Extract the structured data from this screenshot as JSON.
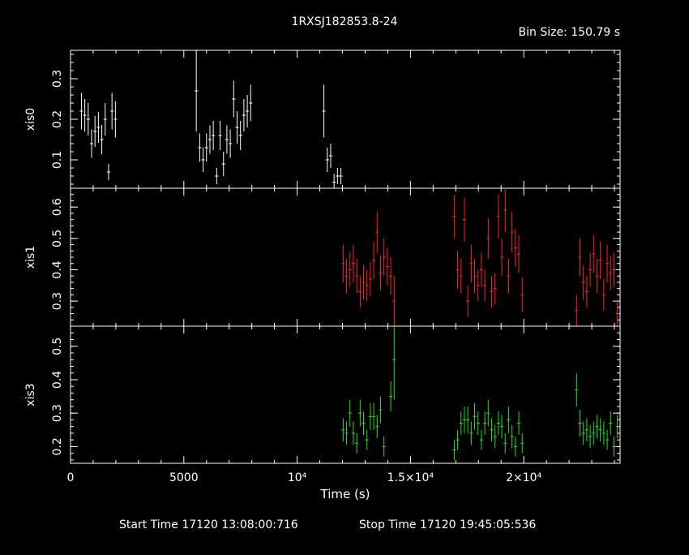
{
  "title": "1RXSJ182853.8-24",
  "bin_size_text": "Bin Size: 150.79 s",
  "footer": {
    "start_time": "Start Time 17120 13:08:00:716",
    "stop_time": "Stop Time 17120 19:45:05:536"
  },
  "chart_data": [
    {
      "type": "scatter",
      "ylabel": "xis0",
      "color": "#ffffff",
      "xlim": [
        0,
        24250
      ],
      "ylim": [
        0.03,
        0.37
      ],
      "yticks": [
        0.1,
        0.2,
        0.3
      ],
      "ytick_labels": [
        "0.1",
        "0.2",
        "0.3"
      ],
      "xticks": [
        0,
        5000,
        10000,
        15000,
        20000
      ],
      "xtick_labels": [
        "",
        "",
        "",
        "",
        ""
      ],
      "xerr": 75,
      "points": [
        {
          "x": 480,
          "y": 0.22,
          "e": 0.045
        },
        {
          "x": 630,
          "y": 0.21,
          "e": 0.04
        },
        {
          "x": 780,
          "y": 0.2,
          "e": 0.04
        },
        {
          "x": 930,
          "y": 0.14,
          "e": 0.035
        },
        {
          "x": 1080,
          "y": 0.17,
          "e": 0.038
        },
        {
          "x": 1230,
          "y": 0.18,
          "e": 0.038
        },
        {
          "x": 1380,
          "y": 0.15,
          "e": 0.036
        },
        {
          "x": 1530,
          "y": 0.2,
          "e": 0.04
        },
        {
          "x": 1680,
          "y": 0.07,
          "e": 0.02
        },
        {
          "x": 1830,
          "y": 0.22,
          "e": 0.045
        },
        {
          "x": 1980,
          "y": 0.2,
          "e": 0.045
        },
        {
          "x": 5550,
          "y": 0.27,
          "e": 0.1
        },
        {
          "x": 5700,
          "y": 0.13,
          "e": 0.035
        },
        {
          "x": 5850,
          "y": 0.1,
          "e": 0.03
        },
        {
          "x": 6000,
          "y": 0.13,
          "e": 0.035
        },
        {
          "x": 6150,
          "y": 0.15,
          "e": 0.035
        },
        {
          "x": 6300,
          "y": 0.16,
          "e": 0.036
        },
        {
          "x": 6450,
          "y": 0.06,
          "e": 0.02
        },
        {
          "x": 6600,
          "y": 0.16,
          "e": 0.036
        },
        {
          "x": 6750,
          "y": 0.09,
          "e": 0.03
        },
        {
          "x": 6900,
          "y": 0.15,
          "e": 0.035
        },
        {
          "x": 7050,
          "y": 0.14,
          "e": 0.035
        },
        {
          "x": 7200,
          "y": 0.25,
          "e": 0.045
        },
        {
          "x": 7350,
          "y": 0.18,
          "e": 0.04
        },
        {
          "x": 7500,
          "y": 0.16,
          "e": 0.036
        },
        {
          "x": 7650,
          "y": 0.21,
          "e": 0.04
        },
        {
          "x": 7800,
          "y": 0.22,
          "e": 0.04
        },
        {
          "x": 7950,
          "y": 0.24,
          "e": 0.045
        },
        {
          "x": 11180,
          "y": 0.22,
          "e": 0.065
        },
        {
          "x": 11330,
          "y": 0.1,
          "e": 0.03
        },
        {
          "x": 11480,
          "y": 0.11,
          "e": 0.03
        },
        {
          "x": 11630,
          "y": 0.045,
          "e": 0.02
        },
        {
          "x": 11780,
          "y": 0.06,
          "e": 0.02
        },
        {
          "x": 11930,
          "y": 0.06,
          "e": 0.02
        }
      ]
    },
    {
      "type": "scatter",
      "ylabel": "xis1",
      "color": "#ff2020",
      "xlim": [
        0,
        24250
      ],
      "ylim": [
        0.22,
        0.66
      ],
      "yticks": [
        0.3,
        0.4,
        0.5,
        0.6
      ],
      "ytick_labels": [
        "0.3",
        "0.4",
        "0.5",
        "0.6"
      ],
      "xticks": [
        0,
        5000,
        10000,
        15000,
        20000
      ],
      "xtick_labels": [
        "",
        "",
        "",
        "",
        ""
      ],
      "xerr": 75,
      "points": [
        {
          "x": 12030,
          "y": 0.42,
          "e": 0.06
        },
        {
          "x": 12180,
          "y": 0.38,
          "e": 0.055
        },
        {
          "x": 12330,
          "y": 0.4,
          "e": 0.055
        },
        {
          "x": 12480,
          "y": 0.42,
          "e": 0.06
        },
        {
          "x": 12630,
          "y": 0.38,
          "e": 0.055
        },
        {
          "x": 12780,
          "y": 0.33,
          "e": 0.05
        },
        {
          "x": 12930,
          "y": 0.36,
          "e": 0.055
        },
        {
          "x": 13080,
          "y": 0.35,
          "e": 0.05
        },
        {
          "x": 13230,
          "y": 0.37,
          "e": 0.055
        },
        {
          "x": 13380,
          "y": 0.43,
          "e": 0.06
        },
        {
          "x": 13530,
          "y": 0.52,
          "e": 0.065
        },
        {
          "x": 13680,
          "y": 0.39,
          "e": 0.055
        },
        {
          "x": 13830,
          "y": 0.44,
          "e": 0.06
        },
        {
          "x": 13980,
          "y": 0.41,
          "e": 0.06
        },
        {
          "x": 14130,
          "y": 0.38,
          "e": 0.06
        },
        {
          "x": 14280,
          "y": 0.3,
          "e": 0.08
        },
        {
          "x": 16930,
          "y": 0.57,
          "e": 0.07
        },
        {
          "x": 17080,
          "y": 0.4,
          "e": 0.06
        },
        {
          "x": 17230,
          "y": 0.38,
          "e": 0.055
        },
        {
          "x": 17380,
          "y": 0.56,
          "e": 0.07
        },
        {
          "x": 17530,
          "y": 0.3,
          "e": 0.05
        },
        {
          "x": 17680,
          "y": 0.42,
          "e": 0.06
        },
        {
          "x": 17830,
          "y": 0.38,
          "e": 0.055
        },
        {
          "x": 17980,
          "y": 0.35,
          "e": 0.05
        },
        {
          "x": 18130,
          "y": 0.4,
          "e": 0.055
        },
        {
          "x": 18280,
          "y": 0.35,
          "e": 0.05
        },
        {
          "x": 18430,
          "y": 0.5,
          "e": 0.065
        },
        {
          "x": 18580,
          "y": 0.33,
          "e": 0.05
        },
        {
          "x": 18730,
          "y": 0.34,
          "e": 0.05
        },
        {
          "x": 18880,
          "y": 0.57,
          "e": 0.07
        },
        {
          "x": 19030,
          "y": 0.44,
          "e": 0.06
        },
        {
          "x": 19180,
          "y": 0.59,
          "e": 0.07
        },
        {
          "x": 19330,
          "y": 0.38,
          "e": 0.055
        },
        {
          "x": 19480,
          "y": 0.52,
          "e": 0.065
        },
        {
          "x": 19630,
          "y": 0.47,
          "e": 0.06
        },
        {
          "x": 19780,
          "y": 0.45,
          "e": 0.06
        },
        {
          "x": 19930,
          "y": 0.32,
          "e": 0.055
        },
        {
          "x": 22330,
          "y": 0.27,
          "e": 0.05
        },
        {
          "x": 22480,
          "y": 0.44,
          "e": 0.06
        },
        {
          "x": 22630,
          "y": 0.36,
          "e": 0.055
        },
        {
          "x": 22780,
          "y": 0.33,
          "e": 0.05
        },
        {
          "x": 22930,
          "y": 0.4,
          "e": 0.055
        },
        {
          "x": 23080,
          "y": 0.45,
          "e": 0.06
        },
        {
          "x": 23230,
          "y": 0.38,
          "e": 0.055
        },
        {
          "x": 23380,
          "y": 0.43,
          "e": 0.06
        },
        {
          "x": 23530,
          "y": 0.32,
          "e": 0.05
        },
        {
          "x": 23680,
          "y": 0.42,
          "e": 0.06
        },
        {
          "x": 23830,
          "y": 0.39,
          "e": 0.055
        },
        {
          "x": 23980,
          "y": 0.4,
          "e": 0.055
        },
        {
          "x": 24130,
          "y": 0.26,
          "e": 0.045
        }
      ]
    },
    {
      "type": "scatter",
      "ylabel": "xis3",
      "color": "#20e020",
      "xlabel": "Time (s)",
      "color_axis": "#ffffff",
      "xlim": [
        0,
        24250
      ],
      "ylim": [
        0.15,
        0.56
      ],
      "yticks": [
        0.2,
        0.3,
        0.4,
        0.5
      ],
      "ytick_labels": [
        "0.2",
        "0.3",
        "0.4",
        "0.5"
      ],
      "xticks": [
        0,
        5000,
        10000,
        15000,
        20000
      ],
      "xtick_labels": [
        "0",
        "5000",
        "10⁴",
        "1.5×10⁴",
        "2×10⁴"
      ],
      "xerr": 75,
      "points": [
        {
          "x": 12030,
          "y": 0.25,
          "e": 0.035
        },
        {
          "x": 12180,
          "y": 0.24,
          "e": 0.035
        },
        {
          "x": 12330,
          "y": 0.3,
          "e": 0.04
        },
        {
          "x": 12480,
          "y": 0.24,
          "e": 0.035
        },
        {
          "x": 12630,
          "y": 0.21,
          "e": 0.03
        },
        {
          "x": 12780,
          "y": 0.3,
          "e": 0.04
        },
        {
          "x": 12930,
          "y": 0.27,
          "e": 0.035
        },
        {
          "x": 13080,
          "y": 0.22,
          "e": 0.03
        },
        {
          "x": 13230,
          "y": 0.29,
          "e": 0.04
        },
        {
          "x": 13380,
          "y": 0.29,
          "e": 0.04
        },
        {
          "x": 13530,
          "y": 0.26,
          "e": 0.035
        },
        {
          "x": 13680,
          "y": 0.31,
          "e": 0.04
        },
        {
          "x": 13830,
          "y": 0.2,
          "e": 0.03
        },
        {
          "x": 14130,
          "y": 0.35,
          "e": 0.045
        },
        {
          "x": 14280,
          "y": 0.46,
          "e": 0.12
        },
        {
          "x": 16930,
          "y": 0.19,
          "e": 0.03
        },
        {
          "x": 17080,
          "y": 0.22,
          "e": 0.03
        },
        {
          "x": 17230,
          "y": 0.27,
          "e": 0.035
        },
        {
          "x": 17380,
          "y": 0.28,
          "e": 0.04
        },
        {
          "x": 17530,
          "y": 0.28,
          "e": 0.04
        },
        {
          "x": 17680,
          "y": 0.24,
          "e": 0.035
        },
        {
          "x": 17830,
          "y": 0.29,
          "e": 0.04
        },
        {
          "x": 17980,
          "y": 0.27,
          "e": 0.035
        },
        {
          "x": 18130,
          "y": 0.22,
          "e": 0.03
        },
        {
          "x": 18280,
          "y": 0.27,
          "e": 0.035
        },
        {
          "x": 18430,
          "y": 0.3,
          "e": 0.04
        },
        {
          "x": 18580,
          "y": 0.25,
          "e": 0.035
        },
        {
          "x": 18730,
          "y": 0.23,
          "e": 0.035
        },
        {
          "x": 18880,
          "y": 0.27,
          "e": 0.035
        },
        {
          "x": 19030,
          "y": 0.26,
          "e": 0.035
        },
        {
          "x": 19180,
          "y": 0.21,
          "e": 0.03
        },
        {
          "x": 19330,
          "y": 0.28,
          "e": 0.04
        },
        {
          "x": 19480,
          "y": 0.23,
          "e": 0.035
        },
        {
          "x": 19630,
          "y": 0.2,
          "e": 0.03
        },
        {
          "x": 19780,
          "y": 0.27,
          "e": 0.035
        },
        {
          "x": 19930,
          "y": 0.21,
          "e": 0.03
        },
        {
          "x": 22330,
          "y": 0.37,
          "e": 0.05
        },
        {
          "x": 22480,
          "y": 0.27,
          "e": 0.04
        },
        {
          "x": 22630,
          "y": 0.24,
          "e": 0.035
        },
        {
          "x": 22780,
          "y": 0.25,
          "e": 0.035
        },
        {
          "x": 22930,
          "y": 0.23,
          "e": 0.035
        },
        {
          "x": 23080,
          "y": 0.24,
          "e": 0.035
        },
        {
          "x": 23230,
          "y": 0.26,
          "e": 0.035
        },
        {
          "x": 23380,
          "y": 0.25,
          "e": 0.035
        },
        {
          "x": 23530,
          "y": 0.24,
          "e": 0.035
        },
        {
          "x": 23680,
          "y": 0.22,
          "e": 0.03
        },
        {
          "x": 23830,
          "y": 0.27,
          "e": 0.035
        },
        {
          "x": 23980,
          "y": 0.2,
          "e": 0.03
        },
        {
          "x": 24130,
          "y": 0.26,
          "e": 0.035
        }
      ]
    }
  ]
}
